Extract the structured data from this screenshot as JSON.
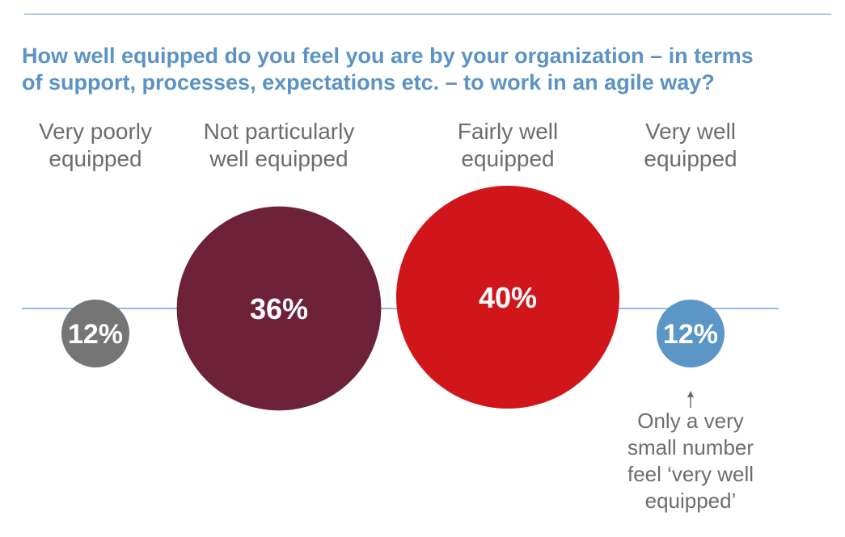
{
  "title": {
    "line1": "How well equipped do you feel you are by your organization – in terms",
    "line2": "of support, processes, expectations etc. – to work in an agile way?"
  },
  "chart_data": {
    "type": "bubble",
    "title": "How well equipped do you feel you are by your organization – in terms of support, processes, expectations etc. – to work in an agile way?",
    "categories": [
      "Very poorly equipped",
      "Not particularly well equipped",
      "Fairly well equipped",
      "Very well equipped"
    ],
    "values": [
      12,
      36,
      40,
      12
    ],
    "value_labels": [
      "12%",
      "36%",
      "40%",
      "12%"
    ],
    "unit": "%",
    "colors": [
      "#757575",
      "#6e2239",
      "#d1161b",
      "#5b96c6"
    ]
  },
  "labels": [
    {
      "line1": "Very poorly",
      "line2": "equipped"
    },
    {
      "line1": "Not particularly",
      "line2": "well equipped"
    },
    {
      "line1": "Fairly well",
      "line2": "equipped"
    },
    {
      "line1": "Very well",
      "line2": "equipped"
    }
  ],
  "annotation": {
    "line1": "Only a very",
    "line2": "small number",
    "line3": "feel ‘very well",
    "line4": "equipped’"
  },
  "colors": {
    "accent": "#5b93c5",
    "text_grey": "#6d6d6d",
    "baseline": "#5b93c5"
  }
}
